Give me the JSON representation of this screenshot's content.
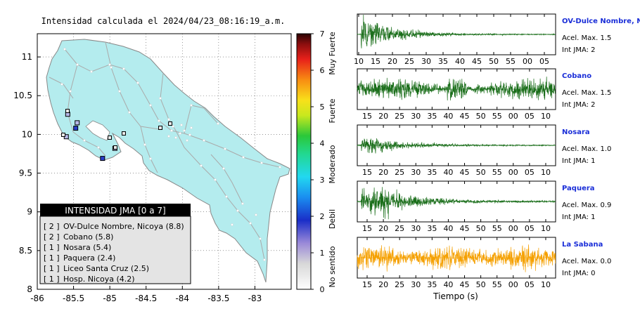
{
  "map": {
    "title": "Intensidad calculada el 2024/04/23_08:16:19_a.m.",
    "x_ticks": [
      "-86",
      "-85.5",
      "-85",
      "-84.5",
      "-84",
      "-83.5",
      "-83"
    ],
    "y_ticks": [
      "11",
      "10.5",
      "10",
      "9.5",
      "9",
      "8.5",
      "8"
    ],
    "xlim": [
      -86,
      -82.5
    ],
    "ylim": [
      8,
      11.3
    ],
    "land_color": "#b4ecee",
    "legend": {
      "title": "INTENSIDAD JMA [0 a 7]",
      "items": [
        {
          "int": "[ 2 ]",
          "label": "OV-Dulce Nombre, Nicoya (8.8)"
        },
        {
          "int": "[ 2 ]",
          "label": "Cobano (5.8)"
        },
        {
          "int": "[ 1 ]",
          "label": "Nosara (5.4)"
        },
        {
          "int": "[ 1 ]",
          "label": "Paquera (2.4)"
        },
        {
          "int": "[ 1 ]",
          "label": "Liceo Santa Cruz (2.5)"
        },
        {
          "int": "[ 1 ]",
          "label": "Hosp. Nicoya (4.2)"
        }
      ]
    },
    "colorbar": {
      "ticks": [
        "0",
        "1",
        "2",
        "3",
        "4",
        "5",
        "6",
        "7"
      ],
      "labels": [
        "No sentido",
        "Debil",
        "Moderado",
        "Fuerte",
        "Muy Fuerte"
      ]
    }
  },
  "waveforms": {
    "xlabel": "Tiempo (s)",
    "panels": [
      {
        "name": "OV-Dulce Nombre, Nicoya",
        "accel": "Acel. Max. 1.5",
        "int": "Int JMA: 2",
        "color": "#1a6e1a",
        "ticks": [
          "10",
          "15",
          "20",
          "25",
          "30",
          "35",
          "40",
          "45",
          "50",
          "55",
          "00",
          "05"
        ]
      },
      {
        "name": "Cobano",
        "accel": "Acel. Max. 1.5",
        "int": "Int JMA: 2",
        "color": "#1a6e1a",
        "ticks": [
          "15",
          "20",
          "25",
          "30",
          "35",
          "40",
          "45",
          "50",
          "55",
          "00",
          "05",
          "10"
        ]
      },
      {
        "name": "Nosara",
        "accel": "Acel. Max. 1.0",
        "int": "Int JMA: 1",
        "color": "#1a6e1a",
        "ticks": [
          "15",
          "20",
          "25",
          "30",
          "35",
          "40",
          "45",
          "50",
          "55",
          "00",
          "05",
          "10"
        ]
      },
      {
        "name": "Paquera",
        "accel": "Acel. Max. 0.9",
        "int": "Int JMA: 1",
        "color": "#1a6e1a",
        "ticks": [
          "15",
          "20",
          "25",
          "30",
          "35",
          "40",
          "45",
          "50",
          "55",
          "00",
          "05",
          "10"
        ]
      },
      {
        "name": "La Sabana",
        "accel": "Acel. Max. 0.0",
        "int": "Int JMA: 0",
        "color": "#f5a000",
        "ticks": [
          "15",
          "20",
          "25",
          "30",
          "35",
          "40",
          "45",
          "50",
          "55",
          "00",
          "05",
          "10"
        ]
      }
    ]
  },
  "chart_data": [
    {
      "type": "scatter",
      "title": "Intensidad calculada el 2024/04/23_08:16:19_a.m.",
      "xlim": [
        -86,
        -82.5
      ],
      "ylim": [
        8,
        11.3
      ],
      "grid": true,
      "legend": "bottom-left",
      "stations": [
        {
          "name": "OV-Dulce Nombre, Nicoya",
          "intensity": 2,
          "lon": -85.47,
          "lat": 10.08
        },
        {
          "name": "Cobano",
          "intensity": 2,
          "lon": -85.1,
          "lat": 9.69
        },
        {
          "name": "Nosara",
          "intensity": 1,
          "lon": -85.6,
          "lat": 9.97
        },
        {
          "name": "Paquera",
          "intensity": 1,
          "lon": -84.93,
          "lat": 9.82
        },
        {
          "name": "Liceo Santa Cruz",
          "intensity": 1,
          "lon": -85.58,
          "lat": 10.26
        },
        {
          "name": "Hosp. Nicoya",
          "intensity": 1,
          "lon": -85.45,
          "lat": 10.15
        }
      ],
      "colorbar": {
        "min": 0,
        "max": 7
      }
    },
    {
      "type": "line",
      "xlabel": "Tiempo (s)",
      "series": [
        {
          "name": "OV-Dulce Nombre, Nicoya",
          "acel_max": 1.5,
          "int_jma": 2
        },
        {
          "name": "Cobano",
          "acel_max": 1.5,
          "int_jma": 2
        },
        {
          "name": "Nosara",
          "acel_max": 1.0,
          "int_jma": 1
        },
        {
          "name": "Paquera",
          "acel_max": 0.9,
          "int_jma": 1
        },
        {
          "name": "La Sabana",
          "acel_max": 0.0,
          "int_jma": 0
        }
      ]
    }
  ]
}
